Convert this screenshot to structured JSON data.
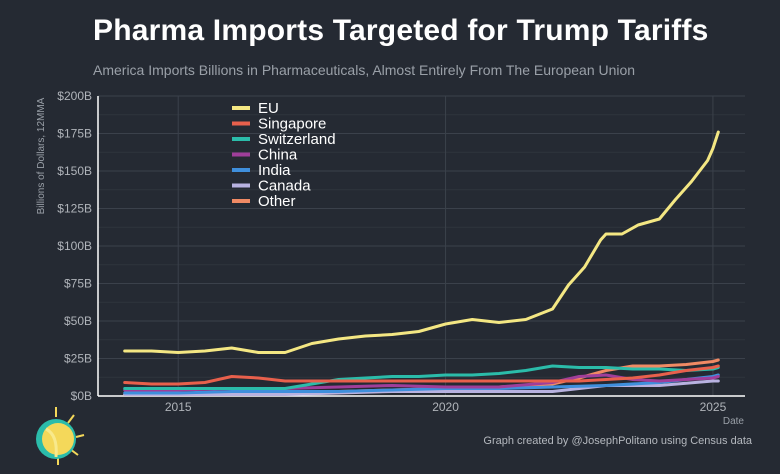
{
  "title": "Pharma Imports Targeted for Trump Tariffs",
  "subtitle": "America Imports Billions in Pharmaceuticals, Almost Entirely From The European Union",
  "credit": "Graph created by @JosephPolitano using Census data",
  "chart_data": {
    "type": "line",
    "ylabel": "Billions of Dollars, 12MMA",
    "xlabel": "Date",
    "ylim": [
      0,
      200
    ],
    "xlim": [
      2013.5,
      2025.6
    ],
    "y_ticks": [
      0,
      25,
      50,
      75,
      100,
      125,
      150,
      175,
      200
    ],
    "y_tick_labels": [
      "$0B",
      "$25B",
      "$50B",
      "$75B",
      "$100B",
      "$125B",
      "$150B",
      "$175B",
      "$200B"
    ],
    "x_ticks": [
      2015,
      2020,
      2025
    ],
    "x_tick_labels": [
      "2015",
      "2020",
      "2025"
    ],
    "grid": true,
    "legend_position": "top-left",
    "series": [
      {
        "name": "EU",
        "color": "#f4e783",
        "x": [
          2014.0,
          2014.5,
          2015.0,
          2015.5,
          2016.0,
          2016.5,
          2017.0,
          2017.5,
          2018.0,
          2018.5,
          2019.0,
          2019.5,
          2020.0,
          2020.5,
          2021.0,
          2021.5,
          2022.0,
          2022.3,
          2022.6,
          2022.9,
          2023.0,
          2023.3,
          2023.6,
          2024.0,
          2024.3,
          2024.6,
          2024.9,
          2025.0,
          2025.1
        ],
        "values": [
          30,
          30,
          29,
          30,
          32,
          29,
          29,
          35,
          38,
          40,
          41,
          43,
          48,
          51,
          49,
          51,
          58,
          74,
          86,
          104,
          108,
          108,
          114,
          118,
          131,
          143,
          157,
          165,
          176
        ]
      },
      {
        "name": "Singapore",
        "color": "#e8604c",
        "x": [
          2014.0,
          2014.5,
          2015.0,
          2015.5,
          2016.0,
          2016.5,
          2017.0,
          2017.5,
          2018.0,
          2018.5,
          2019.0,
          2019.5,
          2020.0,
          2020.5,
          2021.0,
          2021.5,
          2022.0,
          2022.5,
          2023.0,
          2023.5,
          2024.0,
          2024.5,
          2025.0,
          2025.1
        ],
        "values": [
          9,
          8,
          8,
          9,
          13,
          12,
          10,
          10,
          10,
          10,
          10,
          10,
          10,
          10,
          10,
          10,
          10,
          10,
          11,
          12,
          14,
          17,
          19,
          20
        ]
      },
      {
        "name": "Switzerland",
        "color": "#2bbcaa",
        "x": [
          2014.0,
          2014.5,
          2015.0,
          2015.5,
          2016.0,
          2016.5,
          2017.0,
          2017.5,
          2018.0,
          2018.5,
          2019.0,
          2019.5,
          2020.0,
          2020.5,
          2021.0,
          2021.5,
          2022.0,
          2022.5,
          2023.0,
          2023.5,
          2024.0,
          2024.5,
          2025.0,
          2025.1
        ],
        "values": [
          5,
          5,
          5,
          5,
          5,
          5,
          5,
          8,
          11,
          12,
          13,
          13,
          14,
          14,
          15,
          17,
          20,
          19,
          19,
          18,
          18,
          17,
          18,
          19
        ]
      },
      {
        "name": "China",
        "color": "#9f3e9a",
        "x": [
          2014.0,
          2015.0,
          2016.0,
          2017.0,
          2018.0,
          2019.0,
          2020.0,
          2021.0,
          2022.0,
          2022.5,
          2023.0,
          2023.5,
          2024.0,
          2025.0,
          2025.1
        ],
        "values": [
          4,
          4,
          5,
          5,
          6,
          7,
          6,
          6,
          9,
          13,
          14,
          11,
          10,
          12,
          13
        ]
      },
      {
        "name": "India",
        "color": "#3f8fdc",
        "x": [
          2014.0,
          2015.0,
          2016.0,
          2017.0,
          2018.0,
          2019.0,
          2020.0,
          2021.0,
          2022.0,
          2023.0,
          2024.0,
          2025.0,
          2025.1
        ],
        "values": [
          2,
          2,
          3,
          3,
          3,
          4,
          5,
          5,
          6,
          7,
          9,
          13,
          14
        ]
      },
      {
        "name": "Canada",
        "color": "#b8b2e0",
        "x": [
          2014.0,
          2015.0,
          2016.0,
          2017.0,
          2018.0,
          2019.0,
          2020.0,
          2021.0,
          2022.0,
          2022.5,
          2023.0,
          2024.0,
          2025.0,
          2025.1
        ],
        "values": [
          1,
          1,
          1,
          1,
          2,
          3,
          3,
          3,
          3,
          5,
          7,
          7,
          10,
          10
        ]
      },
      {
        "name": "Other",
        "color": "#f08a64",
        "x": [
          2014.0,
          2015.0,
          2016.0,
          2017.0,
          2018.0,
          2019.0,
          2020.0,
          2021.0,
          2022.0,
          2022.5,
          2023.0,
          2023.5,
          2024.0,
          2024.5,
          2025.0,
          2025.1
        ],
        "values": [
          1,
          1,
          2,
          2,
          3,
          4,
          5,
          6,
          8,
          12,
          17,
          20,
          20,
          21,
          23,
          24
        ]
      }
    ]
  }
}
